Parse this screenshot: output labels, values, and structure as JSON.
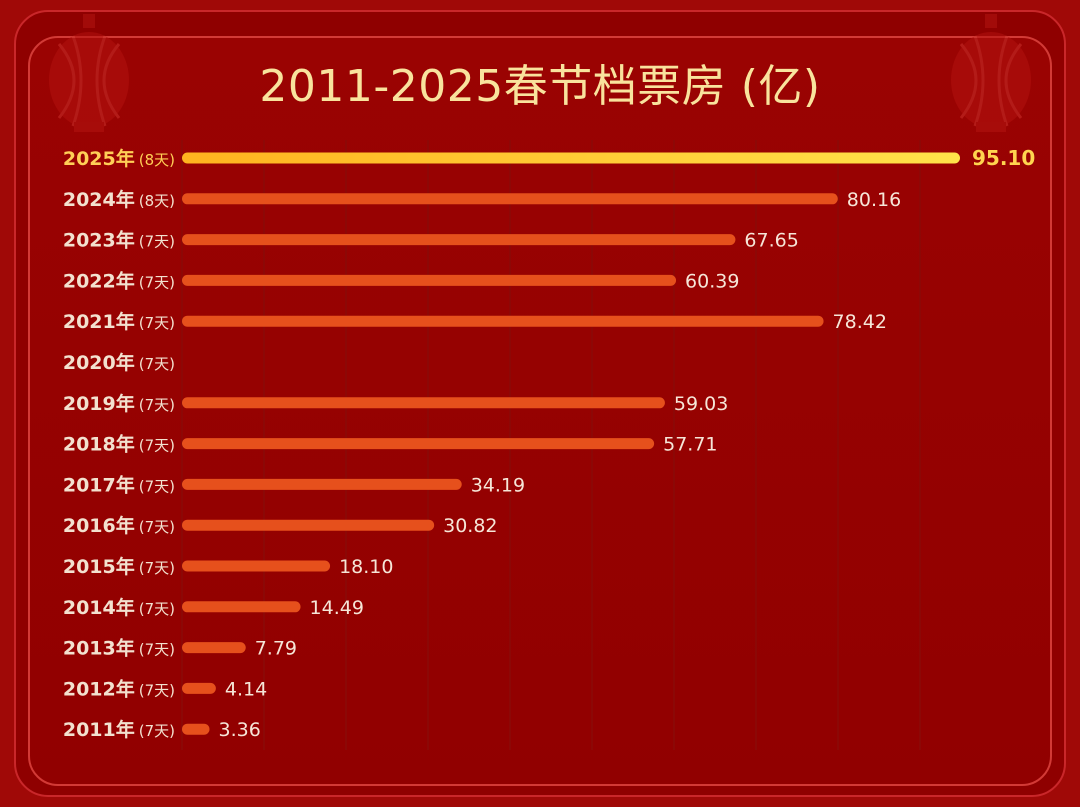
{
  "title": "2011-2025春节档票房 (亿)",
  "chart_data": {
    "type": "bar",
    "orientation": "horizontal",
    "title": "2011-2025春节档票房 (亿)",
    "xlabel": "",
    "ylabel": "",
    "xlim": [
      0,
      95.1
    ],
    "grid": true,
    "categories": [
      {
        "year": "2025年",
        "days": "(8天)"
      },
      {
        "year": "2024年",
        "days": "(8天)"
      },
      {
        "year": "2023年",
        "days": "(7天)"
      },
      {
        "year": "2022年",
        "days": "(7天)"
      },
      {
        "year": "2021年",
        "days": "(7天)"
      },
      {
        "year": "2020年",
        "days": "(7天)"
      },
      {
        "year": "2019年",
        "days": "(7天)"
      },
      {
        "year": "2018年",
        "days": "(7天)"
      },
      {
        "year": "2017年",
        "days": "(7天)"
      },
      {
        "year": "2016年",
        "days": "(7天)"
      },
      {
        "year": "2015年",
        "days": "(7天)"
      },
      {
        "year": "2014年",
        "days": "(7天)"
      },
      {
        "year": "2013年",
        "days": "(7天)"
      },
      {
        "year": "2012年",
        "days": "(7天)"
      },
      {
        "year": "2011年",
        "days": "(7天)"
      }
    ],
    "values": [
      95.1,
      80.16,
      67.65,
      60.39,
      78.42,
      null,
      59.03,
      57.71,
      34.19,
      30.82,
      18.1,
      14.49,
      7.79,
      4.14,
      3.36
    ],
    "value_labels": [
      "95.10",
      "80.16",
      "67.65",
      "60.39",
      "78.42",
      "",
      "59.03",
      "57.71",
      "34.19",
      "30.82",
      "18.10",
      "14.49",
      "7.79",
      "4.14",
      "3.36"
    ],
    "highlight_index": 0
  },
  "colors": {
    "bar": "#e6501c",
    "highlight_start": "#ffb31f",
    "highlight_end": "#ffe24a",
    "grid": "#8a0a08"
  }
}
